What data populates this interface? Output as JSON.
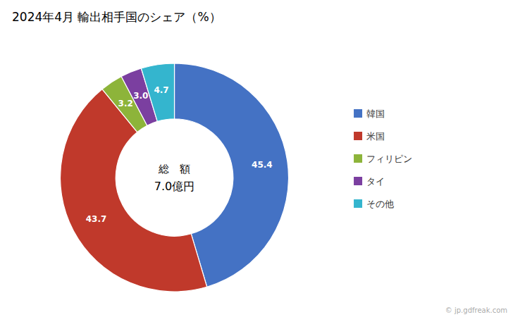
{
  "chart_data": {
    "type": "pie",
    "title": "2024年4月 輸出相手国のシェア（%）",
    "categories": [
      "韓国",
      "米国",
      "フィリピン",
      "タイ",
      "その他"
    ],
    "values": [
      45.4,
      43.7,
      3.2,
      3.0,
      4.7
    ],
    "value_labels": [
      "45.4",
      "43.7",
      "3.2",
      "3.0",
      "4.7"
    ],
    "colors": [
      "#4472C4",
      "#C0392B",
      "#8DB43A",
      "#7B3FA0",
      "#34B5CE"
    ],
    "data_labels": true,
    "legend": "right",
    "annotations": [
      "総　額",
      "7.0億円",
      "© jp.gdfreak.com"
    ]
  }
}
